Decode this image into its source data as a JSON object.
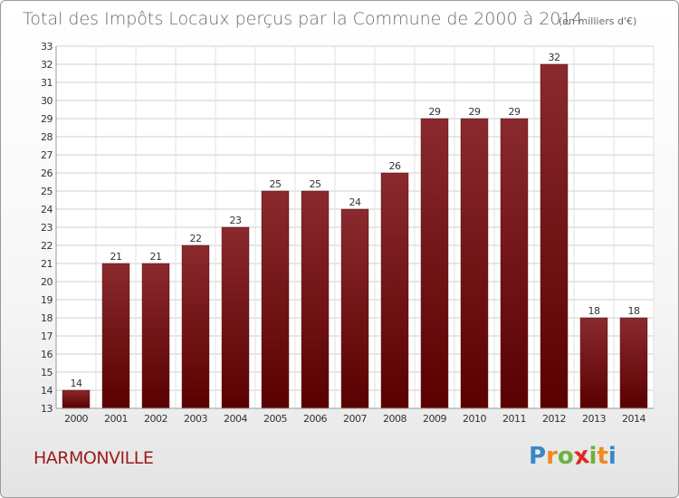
{
  "chart_data": {
    "type": "bar",
    "title": "Total des Impôts Locaux perçus par la Commune de 2000 à 2014",
    "subtitle": "(en milliers d'€)",
    "categories": [
      "2000",
      "2001",
      "2002",
      "2003",
      "2004",
      "2005",
      "2006",
      "2007",
      "2008",
      "2009",
      "2010",
      "2011",
      "2012",
      "2013",
      "2014"
    ],
    "values": [
      14,
      21,
      21,
      22,
      23,
      25,
      25,
      24,
      26,
      29,
      29,
      29,
      32,
      18,
      18
    ],
    "ylim": [
      13,
      33
    ],
    "yticks": [
      13,
      14,
      15,
      16,
      17,
      18,
      19,
      20,
      21,
      22,
      23,
      24,
      25,
      26,
      27,
      28,
      29,
      30,
      31,
      32,
      33
    ],
    "grid": true,
    "bar_color_top": "#8a2a2e",
    "bar_color_bottom": "#5a0000"
  },
  "footer": {
    "commune": "HARMONVILLE",
    "logo_letters": [
      "P",
      "r",
      "o",
      "x",
      "i",
      "t",
      "i"
    ],
    "logo_colors": [
      "#3a87c9",
      "#f08a1e",
      "#6bb33d",
      "#e02a1e",
      "#6bb33d",
      "#f08a1e",
      "#3a87c9"
    ]
  }
}
